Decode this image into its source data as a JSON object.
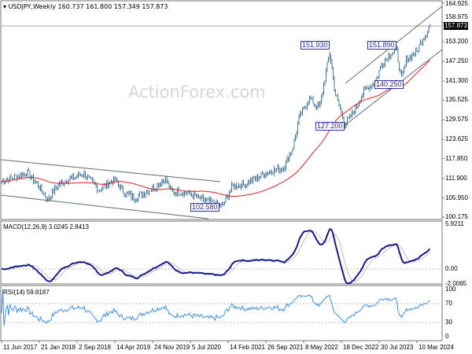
{
  "header": {
    "symbol_line": "USDJPY,Weekly  160.737 161.800 157.349 157.873"
  },
  "watermark": "ActionForex.com",
  "last_price": "157.873",
  "annotations": [
    "151.930",
    "151.890",
    "140.250",
    "127.200",
    "102.580"
  ],
  "macd": {
    "title": "MACD(12,26,9) 3.0245 2.8413",
    "ticks": [
      "5.9211",
      "0.00",
      "-2.0065"
    ]
  },
  "rsi": {
    "title": "RSI(14) 59.8187",
    "ticks": [
      "100",
      "70",
      "30",
      "0"
    ]
  },
  "colors": {
    "bars": "#4a7a99",
    "sma": "#e02020",
    "macd": "#1a1a8c",
    "signal": "#c0c0c0",
    "rsi": "#3d8fe6",
    "channel": "#5a6e6e"
  },
  "chart_data": {
    "type": "bar",
    "title": "USDJPY,Weekly",
    "y_ticks": [
      "164.925",
      "158.975",
      "153.200",
      "147.250",
      "141.300",
      "135.525",
      "129.575",
      "123.625",
      "117.850",
      "111.900",
      "105.950",
      "100.175"
    ],
    "ylim": [
      100.175,
      164.925
    ],
    "x_ticks": [
      "11 Jun 2017",
      "21 Jan 2018",
      "2 Sep 2018",
      "14 Apr 2019",
      "24 Nov 2019",
      "5 Jul 2020",
      "14 Feb 2021",
      "26 Sep 2021",
      "8 May 2022",
      "18 Dec 2022",
      "30 Jul 2023",
      "10 Mar 2024"
    ],
    "approx_closes": {
      "dates": [
        "2017-06",
        "2017-11",
        "2018-01",
        "2018-03",
        "2018-05",
        "2018-10",
        "2018-12",
        "2019-01",
        "2019-04",
        "2019-06",
        "2019-08",
        "2019-12",
        "2020-02",
        "2020-03",
        "2020-06",
        "2020-10",
        "2021-01",
        "2021-03",
        "2021-06",
        "2021-10",
        "2022-01",
        "2022-03",
        "2022-04",
        "2022-06",
        "2022-08",
        "2022-10",
        "2022-11",
        "2023-01",
        "2023-03",
        "2023-05",
        "2023-07",
        "2023-08",
        "2023-10",
        "2023-11",
        "2023-12",
        "2024-01",
        "2024-03",
        "2024-04",
        "2024-05",
        "2024-06",
        "2024-07"
      ],
      "values": [
        111,
        113.5,
        110,
        105.5,
        110,
        113.5,
        110,
        108.5,
        111.5,
        107.5,
        106,
        109.5,
        112,
        108,
        107.5,
        105,
        103.5,
        109.5,
        110.5,
        114,
        115,
        122,
        130,
        136,
        133,
        150,
        138,
        128,
        133,
        139,
        141,
        146,
        150,
        151,
        141.5,
        148,
        150,
        154,
        156,
        160.5,
        157.9
      ]
    },
    "indicator": "SMA 55 (red)"
  }
}
